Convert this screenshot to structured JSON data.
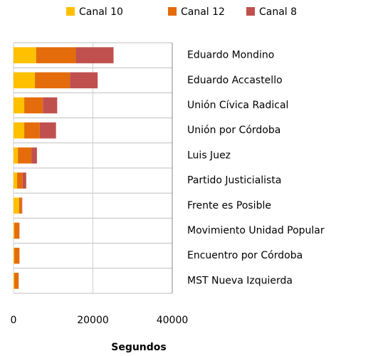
{
  "chart_data": {
    "type": "stacked-barh",
    "categories": [
      "Eduardo Mondino",
      "Eduardo Accastello",
      "Unión Cívica Radical",
      "Unión por Córdoba",
      "Luis Juez",
      "Partido Justicialista",
      "Frente es Posible",
      "Movimiento Unidad Popular",
      "Encuentro por Córdoba",
      "MST Nueva Izquierda"
    ],
    "series": [
      {
        "name": "Canal 10",
        "color": "#ffc000",
        "values": [
          5700,
          5400,
          2700,
          2700,
          1100,
          900,
          1400,
          200,
          200,
          200
        ]
      },
      {
        "name": "Canal 12",
        "color": "#e46c0a",
        "values": [
          10000,
          8800,
          4700,
          3900,
          3400,
          1400,
          700,
          1300,
          1300,
          1100
        ]
      },
      {
        "name": "Canal 8",
        "color": "#c0504d",
        "values": [
          9500,
          7000,
          3600,
          4100,
          1400,
          900,
          100,
          0,
          0,
          0
        ]
      }
    ],
    "xlim": [
      0,
      40000
    ],
    "xticks": [
      0,
      20000,
      40000
    ],
    "xlabel": "Segundos",
    "grid": true,
    "legend": "top"
  }
}
